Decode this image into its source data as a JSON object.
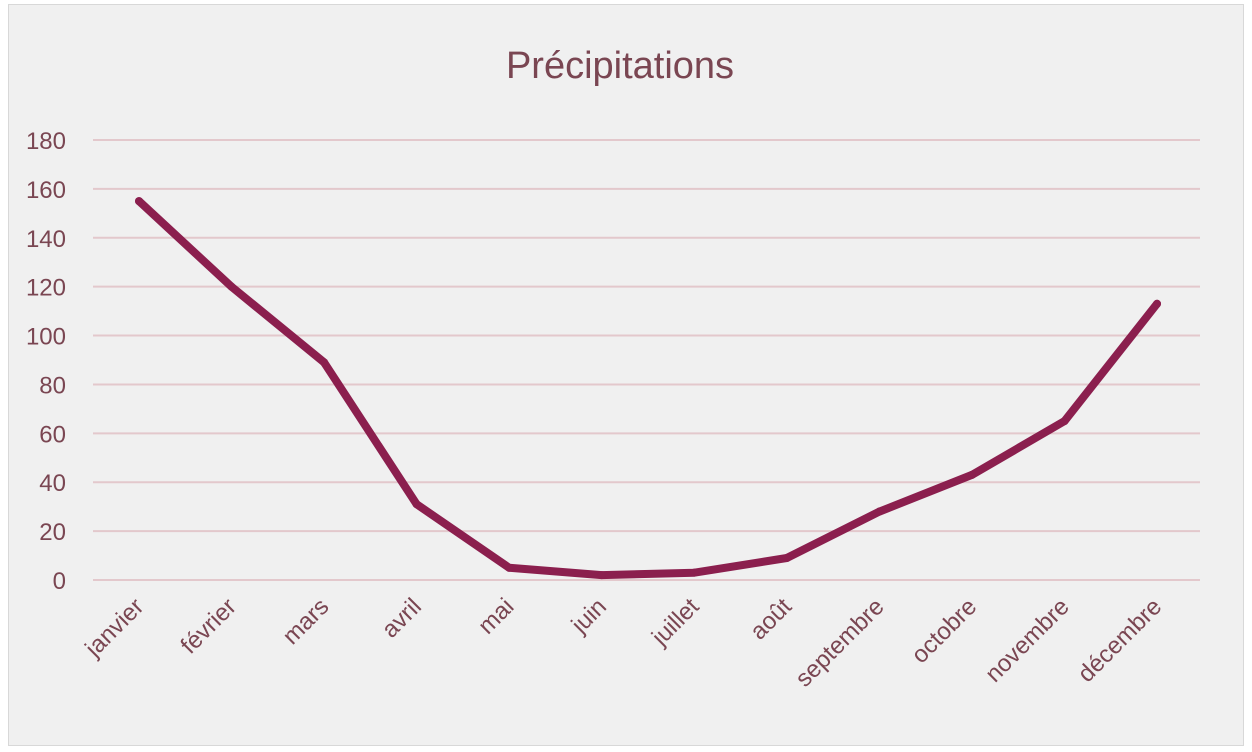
{
  "chart_data": {
    "type": "line",
    "title": "Précipitations",
    "xlabel": "",
    "ylabel": "",
    "categories": [
      "janvier",
      "février",
      "mars",
      "avril",
      "mai",
      "juin",
      "juillet",
      "août",
      "septembre",
      "octobre",
      "novembre",
      "décembre"
    ],
    "series": [
      {
        "values": [
          155,
          120,
          89,
          31,
          5,
          2,
          3,
          9,
          28,
          43,
          65,
          113
        ]
      }
    ],
    "ylim": [
      0,
      180
    ],
    "yticks": [
      0,
      20,
      40,
      60,
      80,
      100,
      120,
      140,
      160,
      180
    ],
    "grid": true,
    "legend": "none",
    "colors": {
      "line": "#8b1f4e",
      "grid": "#e3c8cc",
      "text": "#7a4652",
      "background": "#f0f0f0"
    }
  }
}
